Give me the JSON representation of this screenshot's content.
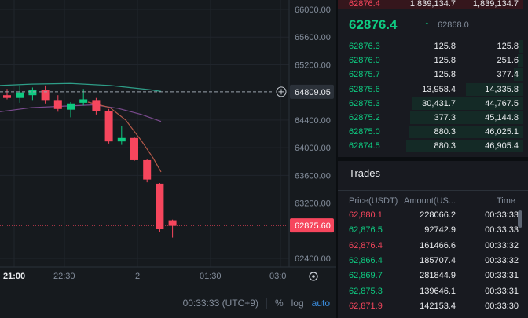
{
  "colors": {
    "up": "#0ecb81",
    "down": "#f6465d",
    "ma_green": "#2e9e88",
    "ma_purple": "#7b4b8f",
    "ma_red": "#b55a4a",
    "accent_blue": "#3a8dde"
  },
  "chart": {
    "price_axis": [
      "66000.00",
      "65600.00",
      "65200.00",
      "64400.00",
      "64000.00",
      "63600.00",
      "63200.00",
      "62400.00"
    ],
    "time_axis": [
      "21:00",
      "22:30",
      "2",
      "01:30",
      "03:0"
    ],
    "crosshair_price": "64809.05",
    "current_price_label": "62875.60",
    "add_icon": "plus-circle-icon",
    "settings_icon": "gear-icon"
  },
  "chart_data": {
    "type": "candlestick",
    "ylim": [
      62300,
      66100
    ],
    "candles": [
      {
        "o": 64760,
        "h": 64850,
        "l": 64700,
        "c": 64720
      },
      {
        "o": 64720,
        "h": 64900,
        "l": 64650,
        "c": 64800
      },
      {
        "o": 64760,
        "h": 64870,
        "l": 64690,
        "c": 64840
      },
      {
        "o": 64830,
        "h": 64900,
        "l": 64640,
        "c": 64690
      },
      {
        "o": 64690,
        "h": 64760,
        "l": 64520,
        "c": 64560
      },
      {
        "o": 64550,
        "h": 64660,
        "l": 64440,
        "c": 64640
      },
      {
        "o": 64650,
        "h": 64850,
        "l": 64610,
        "c": 64700
      },
      {
        "o": 64690,
        "h": 64720,
        "l": 64480,
        "c": 64530
      },
      {
        "o": 64530,
        "h": 64560,
        "l": 64060,
        "c": 64090
      },
      {
        "o": 64090,
        "h": 64310,
        "l": 64040,
        "c": 64140
      },
      {
        "o": 64140,
        "h": 64160,
        "l": 63810,
        "c": 63820
      },
      {
        "o": 63820,
        "h": 63830,
        "l": 63500,
        "c": 63540
      },
      {
        "o": 63480,
        "h": 63490,
        "l": 62780,
        "c": 62820
      },
      {
        "o": 62950,
        "h": 62960,
        "l": 62700,
        "c": 62870
      }
    ]
  },
  "bottom_bar": {
    "clock": "00:33:33 (UTC+9)",
    "percent": "%",
    "log": "log",
    "auto": "auto"
  },
  "orderbook": {
    "top_ask": {
      "price": "62876.4",
      "amount": "1,839,134.7",
      "total": "1,839,134.7"
    },
    "last_price": "62876.4",
    "last_arrow": "↑",
    "mark_price": "62868.0",
    "bids": [
      {
        "price": "62876.3",
        "amount": "125.8",
        "total": "125.8",
        "depth": 0.02
      },
      {
        "price": "62876.0",
        "amount": "125.8",
        "total": "251.6",
        "depth": 0.03
      },
      {
        "price": "62875.7",
        "amount": "125.8",
        "total": "377.4",
        "depth": 0.05
      },
      {
        "price": "62875.6",
        "amount": "13,958.4",
        "total": "14,335.8",
        "depth": 0.31
      },
      {
        "price": "62875.3",
        "amount": "30,431.7",
        "total": "44,767.5",
        "depth": 0.6
      },
      {
        "price": "62875.2",
        "amount": "377.3",
        "total": "45,144.8",
        "depth": 0.61
      },
      {
        "price": "62875.0",
        "amount": "880.3",
        "total": "46,025.1",
        "depth": 0.62
      },
      {
        "price": "62874.5",
        "amount": "880.3",
        "total": "46,905.4",
        "depth": 0.63
      }
    ]
  },
  "trades": {
    "title": "Trades",
    "headers": {
      "price": "Price(USDT)",
      "amount": "Amount(US...",
      "time": "Time"
    },
    "rows": [
      {
        "price": "62,880.1",
        "amount": "228066.2",
        "time": "00:33:33",
        "side": "sell"
      },
      {
        "price": "62,876.5",
        "amount": "92742.9",
        "time": "00:33:33",
        "side": "buy"
      },
      {
        "price": "62,876.4",
        "amount": "161466.6",
        "time": "00:33:32",
        "side": "sell"
      },
      {
        "price": "62,866.4",
        "amount": "185707.4",
        "time": "00:33:32",
        "side": "buy"
      },
      {
        "price": "62,869.7",
        "amount": "281844.9",
        "time": "00:33:31",
        "side": "buy"
      },
      {
        "price": "62,875.3",
        "amount": "139646.1",
        "time": "00:33:31",
        "side": "buy"
      },
      {
        "price": "62,871.9",
        "amount": "142153.4",
        "time": "00:33:30",
        "side": "sell"
      }
    ]
  }
}
